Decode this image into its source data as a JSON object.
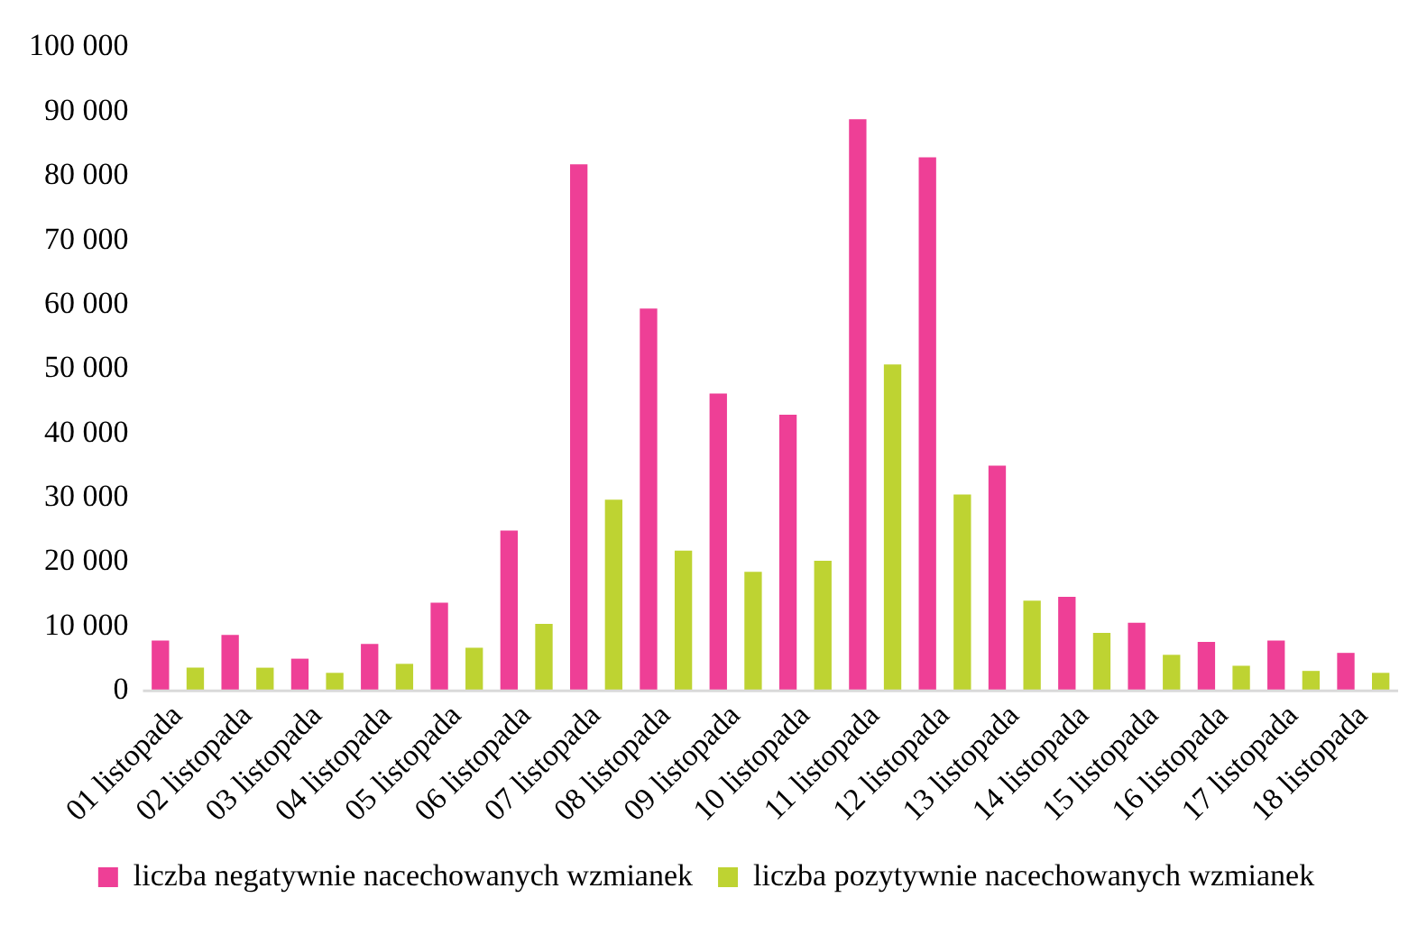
{
  "chart_data": {
    "type": "bar",
    "categories": [
      "01 listopada",
      "02 listopada",
      "03 listopada",
      "04 listopada",
      "05 listopada",
      "06 listopada",
      "07 listopada",
      "08 listopada",
      "09 listopada",
      "10 listopada",
      "11 listopada",
      "12 listopada",
      "13 listopada",
      "14 listopada",
      "15 listopada",
      "16 listopada",
      "17 listopada",
      "18 listopada"
    ],
    "series": [
      {
        "name": "liczba negatywnie nacechowanych wzmianek",
        "color": "#ee3f96",
        "values": [
          7800,
          8700,
          5000,
          7300,
          13700,
          24900,
          81800,
          59400,
          46200,
          42900,
          88800,
          82900,
          35000,
          14600,
          10600,
          7600,
          7800,
          5900
        ]
      },
      {
        "name": "liczba pozytywnie nacechowanych wzmianek",
        "color": "#bed332",
        "values": [
          3600,
          3600,
          2800,
          4200,
          6700,
          10400,
          29700,
          21800,
          18500,
          20200,
          50700,
          30500,
          14000,
          9000,
          5600,
          3900,
          3100,
          2800
        ]
      }
    ],
    "ylim": [
      0,
      100000
    ],
    "yticks": [
      0,
      {
        "value": 10000,
        "label": "10 000"
      },
      {
        "value": 20000,
        "label": "20 000"
      },
      {
        "value": 30000,
        "label": "30 000"
      },
      {
        "value": 40000,
        "label": "40 000"
      },
      {
        "value": 50000,
        "label": "50 000"
      },
      {
        "value": 60000,
        "label": "60 000"
      },
      {
        "value": 70000,
        "label": "70 000"
      },
      {
        "value": 80000,
        "label": "80 000"
      },
      {
        "value": 90000,
        "label": "90 000"
      },
      {
        "value": 100000,
        "label": "100 000"
      }
    ],
    "grid": false,
    "legend": "bottom"
  }
}
